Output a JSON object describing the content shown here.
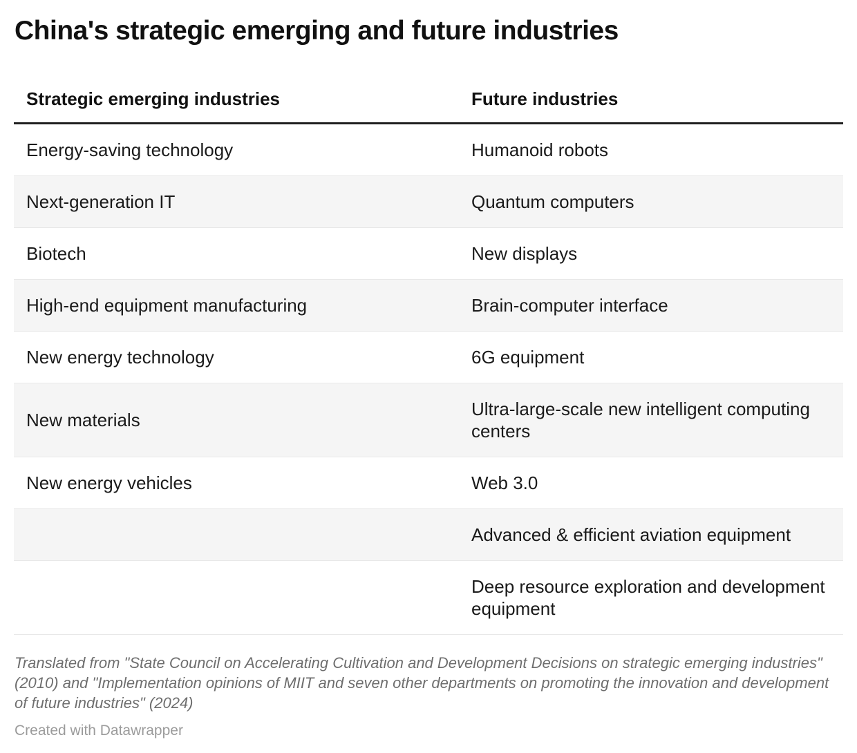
{
  "title": "China's strategic emerging and future industries",
  "chart_data": {
    "type": "table",
    "title": "China's strategic emerging and future industries",
    "columns": [
      "Strategic emerging industries",
      "Future industries"
    ],
    "rows": [
      [
        "Energy-saving technology",
        "Humanoid robots"
      ],
      [
        "Next-generation IT",
        "Quantum computers"
      ],
      [
        "Biotech",
        "New displays"
      ],
      [
        "High-end equipment manufacturing",
        "Brain-computer interface"
      ],
      [
        "New energy technology",
        "6G equipment"
      ],
      [
        "New materials",
        "Ultra-large-scale new intelligent computing centers"
      ],
      [
        "New energy vehicles",
        "Web 3.0"
      ],
      [
        "",
        "Advanced & efficient aviation equipment"
      ],
      [
        "",
        "Deep resource exploration and development equipment"
      ]
    ],
    "layout_hints": {
      "striped_rows": true,
      "stripe_color": "#f5f5f5",
      "header_rule_color": "#1f1f1f"
    }
  },
  "footer": {
    "source_note": "Translated from \"State Council on Accelerating Cultivation and Development Decisions on strategic emerging industries\" (2010) and \"Implementation opinions of MIIT and seven other departments on promoting the innovation and development of future industries\" (2024)",
    "credit": "Created with Datawrapper"
  },
  "colors": {
    "text": "#1a1a1a",
    "stripe": "#f5f5f5",
    "row_border": "#e8e8e8",
    "header_rule": "#1f1f1f",
    "footer_text": "#6e6e6e",
    "credit_text": "#9b9b9b"
  }
}
